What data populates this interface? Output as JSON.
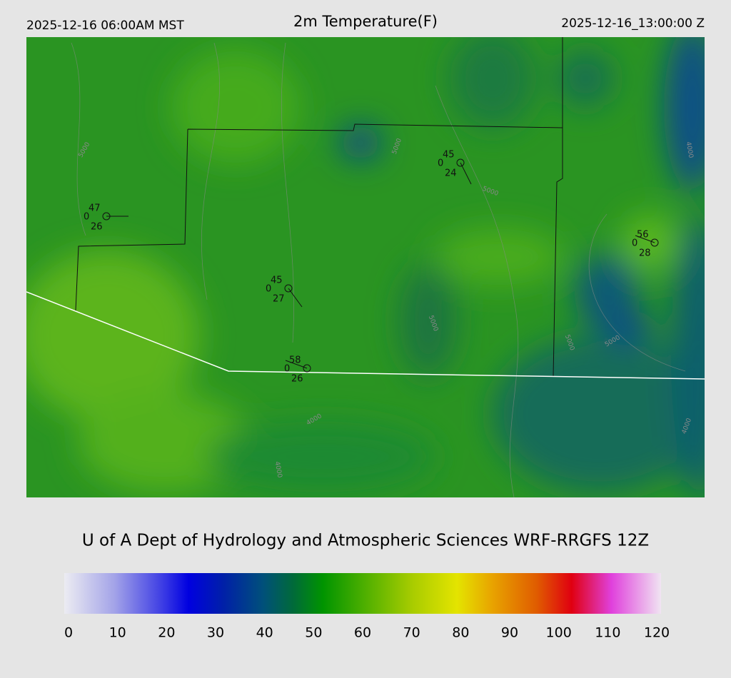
{
  "header": {
    "left": "2025-12-16 06:00AM MST",
    "title": "2m Temperature(F)",
    "right": "2025-12-16_13:00:00 Z"
  },
  "footer": "U of A Dept of Hydrology and Atmospheric Sciences WRF-RRGFS 12Z",
  "stations": [
    {
      "temp": 47,
      "code": 0,
      "dew": 26
    },
    {
      "temp": 45,
      "code": 0,
      "dew": 24
    },
    {
      "temp": 56,
      "code": 0,
      "dew": 28
    },
    {
      "temp": 45,
      "code": 0,
      "dew": 27
    },
    {
      "temp": 58,
      "code": 0,
      "dew": 26
    }
  ],
  "contour_labels": [
    "5000",
    "5000",
    "5000",
    "5000",
    "5000",
    "5000",
    "4000",
    "4000",
    "4000",
    "4000"
  ],
  "colorbar": {
    "range": [
      0,
      120
    ],
    "ticks": [
      0,
      10,
      20,
      30,
      40,
      50,
      60,
      70,
      80,
      90,
      100,
      110,
      120
    ],
    "stops": [
      [
        0,
        "#ececf2"
      ],
      [
        10,
        "#a4a4e8"
      ],
      [
        20,
        "#3a3ae4"
      ],
      [
        25,
        "#0000e0"
      ],
      [
        32,
        "#0020a8"
      ],
      [
        40,
        "#00507a"
      ],
      [
        46,
        "#006a3a"
      ],
      [
        52,
        "#009400"
      ],
      [
        60,
        "#4aae00"
      ],
      [
        70,
        "#a8cc00"
      ],
      [
        79,
        "#e4e400"
      ],
      [
        86,
        "#e8a400"
      ],
      [
        95,
        "#e05c00"
      ],
      [
        102,
        "#e00010"
      ],
      [
        110,
        "#e040dc"
      ],
      [
        120,
        "#f0e4f2"
      ]
    ]
  }
}
